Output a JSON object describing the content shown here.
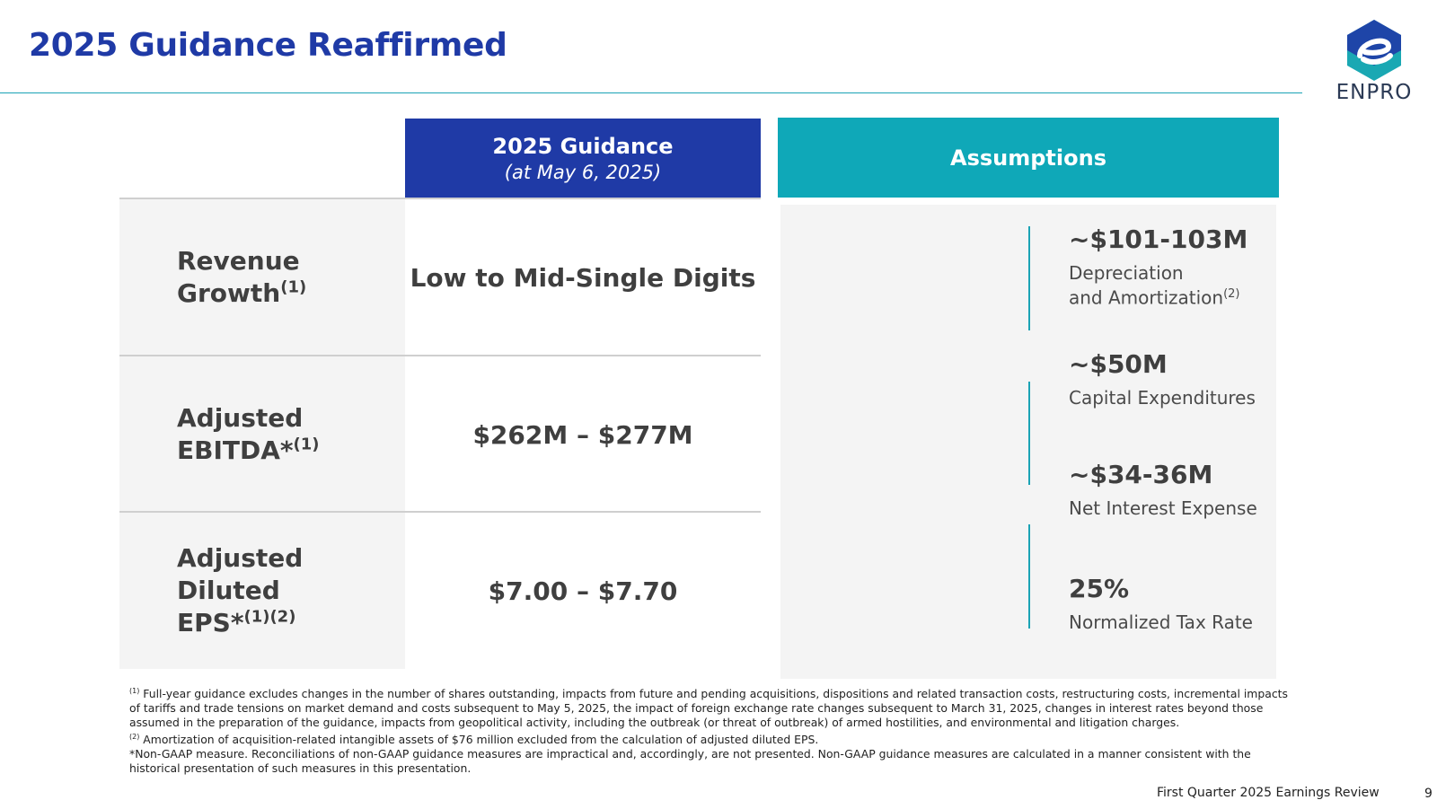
{
  "slide": {
    "title": "2025 Guidance Reaffirmed",
    "logo_text": "ENPRO",
    "footer_text": "First Quarter 2025 Earnings Review",
    "page_number": "9"
  },
  "guidance_header": {
    "title": "2025 Guidance",
    "subtitle": "(at May 6, 2025)"
  },
  "assumptions_header": "Assumptions",
  "rows": [
    {
      "label_line1": "Revenue",
      "label_line2": "Growth",
      "label_sup": "(1)",
      "value": "Low to Mid-Single Digits"
    },
    {
      "label_line1": "Adjusted",
      "label_line2": "EBITDA*",
      "label_sup": "(1)",
      "value": "$262M – $277M"
    },
    {
      "label_line1": "Adjusted Diluted",
      "label_line2": "EPS*",
      "label_sup": "(1)(2)",
      "value": "$7.00 – $7.70"
    }
  ],
  "assumptions": [
    {
      "value": "~$101-103M",
      "label_line1": "Depreciation",
      "label_line2": "and Amortization",
      "label_sup": "(2)"
    },
    {
      "value": "~$50M",
      "label_line1": "Capital Expenditures"
    },
    {
      "value": "~$34-36M",
      "label_line1": "Net Interest Expense"
    },
    {
      "value": "25%",
      "label_line1": "Normalized Tax Rate"
    }
  ],
  "footnotes": {
    "fn1_marker": "(1)",
    "fn1": " Full-year guidance excludes changes in the number of shares outstanding, impacts from future and pending acquisitions, dispositions and related transaction costs, restructuring costs, incremental impacts of tariffs and trade tensions on market demand and costs subsequent to May 5, 2025, the impact of foreign exchange rate changes subsequent to March 31, 2025, changes in interest rates beyond those assumed in the preparation of the guidance, impacts from geopolitical activity, including the outbreak (or threat of outbreak) of armed hostilities, and environmental and litigation charges.",
    "fn2_marker": "(2)",
    "fn2": " Amortization of acquisition-related intangible assets of $76 million excluded from the calculation of adjusted diluted EPS.",
    "fn3": "*Non-GAAP measure.  Reconciliations of non-GAAP guidance measures are impractical and, accordingly, are not presented.  Non-GAAP guidance measures are calculated in a manner consistent with the historical presentation of such measures in this presentation."
  },
  "colors": {
    "title_blue": "#1f3aa6",
    "guidance_header_bg": "#1f3aa6",
    "assumptions_header_bg": "#0fa8b8",
    "accent_teal": "#1aa3b5",
    "panel_gray": "#f4f4f4"
  }
}
